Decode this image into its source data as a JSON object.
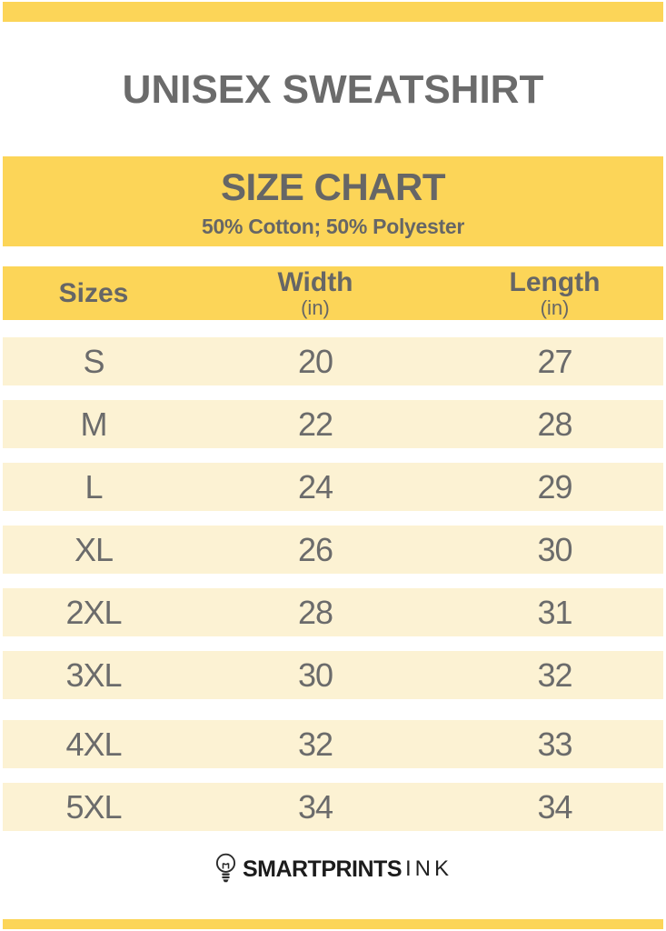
{
  "theme": {
    "accent_yellow": "#fcd558",
    "row_cream": "#fcf2d3",
    "text_gray": "#6b6b6b",
    "header_text_gray": "#666666",
    "logo_black": "#1c1c1c"
  },
  "header": {
    "product_title": "UNISEX SWEATSHIRT"
  },
  "banner": {
    "title": "SIZE CHART",
    "subtitle": "50% Cotton; 50% Polyester"
  },
  "table": {
    "columns": [
      {
        "label": "Sizes",
        "unit": ""
      },
      {
        "label": "Width",
        "unit": "(in)"
      },
      {
        "label": "Length",
        "unit": "(in)"
      }
    ]
  },
  "footer": {
    "brand_primary": "SMARTPRINTS",
    "brand_secondary": "INK",
    "logo_icon": "lightbulb-icon"
  },
  "chart_data": {
    "type": "table",
    "title": "SIZE CHART",
    "subtitle": "50% Cotton; 50% Polyester",
    "columns": [
      "Sizes",
      "Width (in)",
      "Length (in)"
    ],
    "rows": [
      [
        "S",
        20,
        27
      ],
      [
        "M",
        22,
        28
      ],
      [
        "L",
        24,
        29
      ],
      [
        "XL",
        26,
        30
      ],
      [
        "2XL",
        28,
        31
      ],
      [
        "3XL",
        30,
        32
      ],
      [
        "4XL",
        32,
        33
      ],
      [
        "5XL",
        34,
        34
      ]
    ]
  }
}
